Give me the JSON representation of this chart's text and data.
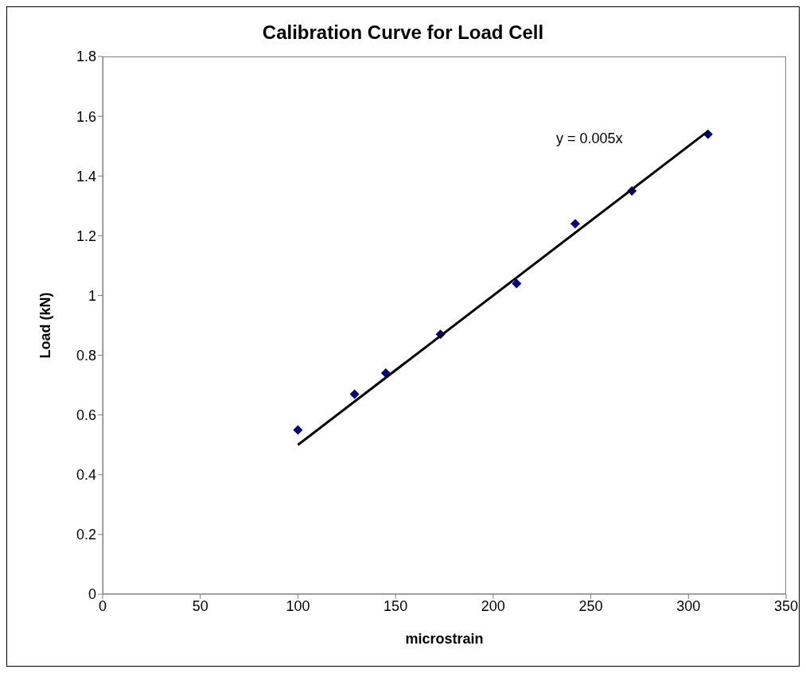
{
  "chart_data": {
    "type": "scatter",
    "title": "Calibration Curve for Load Cell",
    "xlabel": "microstrain",
    "ylabel": "Load (kN)",
    "x": [
      100,
      129,
      145,
      173,
      212,
      242,
      271,
      310
    ],
    "series": [
      {
        "color": "#000080",
        "marker": "diamond",
        "values": [
          0.55,
          0.67,
          0.74,
          0.87,
          1.04,
          1.24,
          1.35,
          1.54
        ]
      },
      {
        "type": "line",
        "color": "#000000",
        "x": [
          100,
          310
        ],
        "values": [
          0.5,
          1.55
        ]
      }
    ],
    "annotations": [
      "y = 0.005x"
    ],
    "xlim": [
      0,
      350
    ],
    "xticks": [
      0,
      50,
      100,
      150,
      200,
      250,
      300,
      350
    ],
    "ylim": [
      0,
      1.8
    ],
    "yticks": [
      0,
      0.2,
      0.4,
      0.6,
      0.8,
      1,
      1.2,
      1.4,
      1.6,
      1.8
    ],
    "grid": false,
    "legend": false
  }
}
